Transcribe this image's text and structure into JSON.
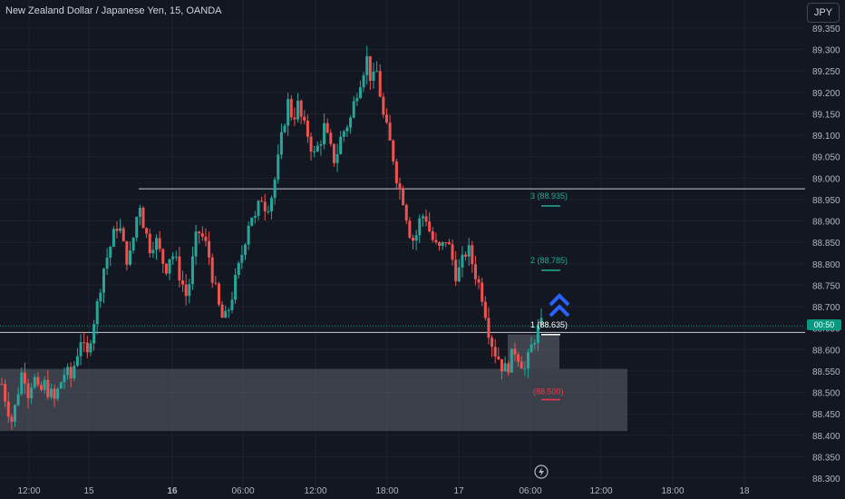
{
  "header": {
    "title": "New Zealand Dollar / Japanese Yen, 15, OANDA",
    "currency_button": "JPY"
  },
  "price_scale": {
    "countdown": "00:50"
  },
  "colors": {
    "background": "#131722",
    "bull": "#26a69a",
    "bear": "#ef5350",
    "zone": "#5d606b",
    "arrow": "#2962ff",
    "target": "#22ab94",
    "stop": "#f23645"
  },
  "annotations": {
    "targets": [
      {
        "label": "3 (88.935)",
        "price": 88.935
      },
      {
        "label": "2 (88.785)",
        "price": 88.785
      },
      {
        "label": "1 (88.635)",
        "price": 88.635
      }
    ],
    "stop": {
      "label": "(88.500)",
      "price": 88.5
    },
    "horizontal_lines": [
      88.975,
      88.64
    ],
    "demand_zone": {
      "low": 88.41,
      "high": 88.555
    },
    "entry_box": {
      "low": 88.555,
      "high": 88.635
    },
    "arrow": "double-chevron-up-icon",
    "event_icon": "lightning-icon"
  },
  "chart_data": {
    "type": "candlestick",
    "title": "New Zealand Dollar / Japanese Yen, 15, OANDA",
    "ylim": [
      88.3,
      89.35
    ],
    "y_ticks": [
      "89.350",
      "89.300",
      "89.250",
      "89.200",
      "89.150",
      "89.100",
      "89.050",
      "89.000",
      "88.950",
      "88.900",
      "88.850",
      "88.800",
      "88.750",
      "88.700",
      "88.650",
      "88.600",
      "88.550",
      "88.500",
      "88.450",
      "88.400",
      "88.350",
      "88.300"
    ],
    "x_ticks": [
      "12:00",
      "15",
      "16",
      "06:00",
      "12:00",
      "18:00",
      "17",
      "06:00",
      "12:00",
      "18:00",
      "18"
    ],
    "bold_x_ticks": [
      "16"
    ],
    "last_price": 88.655,
    "series": [
      {
        "name": "NZDJPY",
        "close_path": [
          88.52,
          88.47,
          88.43,
          88.5,
          88.56,
          88.5,
          88.54,
          88.49,
          88.52,
          88.5,
          88.48,
          88.52,
          88.55,
          88.53,
          88.58,
          88.63,
          88.57,
          88.65,
          88.7,
          88.78,
          88.82,
          88.86,
          88.9,
          88.84,
          88.8,
          88.87,
          88.95,
          88.88,
          88.84,
          88.86,
          88.82,
          88.79,
          88.83,
          88.8,
          88.76,
          88.72,
          88.8,
          88.88,
          88.86,
          88.83,
          88.76,
          88.7,
          88.66,
          88.7,
          88.75,
          88.8,
          88.86,
          88.92,
          88.9,
          88.96,
          88.93,
          88.96,
          89.02,
          89.1,
          89.18,
          89.14,
          89.17,
          89.12,
          89.1,
          89.05,
          89.08,
          89.12,
          89.07,
          89.04,
          89.09,
          89.12,
          89.14,
          89.2,
          89.24,
          89.28,
          89.22,
          89.25,
          89.15,
          89.1,
          89.05,
          88.98,
          88.95,
          88.88,
          88.85,
          88.9,
          88.92,
          88.87,
          88.84,
          88.83,
          88.86,
          88.82,
          88.77,
          88.8,
          88.84,
          88.8,
          88.76,
          88.72,
          88.65,
          88.6,
          88.58,
          88.55,
          88.57,
          88.6,
          88.58,
          88.55,
          88.6,
          88.64,
          88.655
        ]
      }
    ]
  }
}
